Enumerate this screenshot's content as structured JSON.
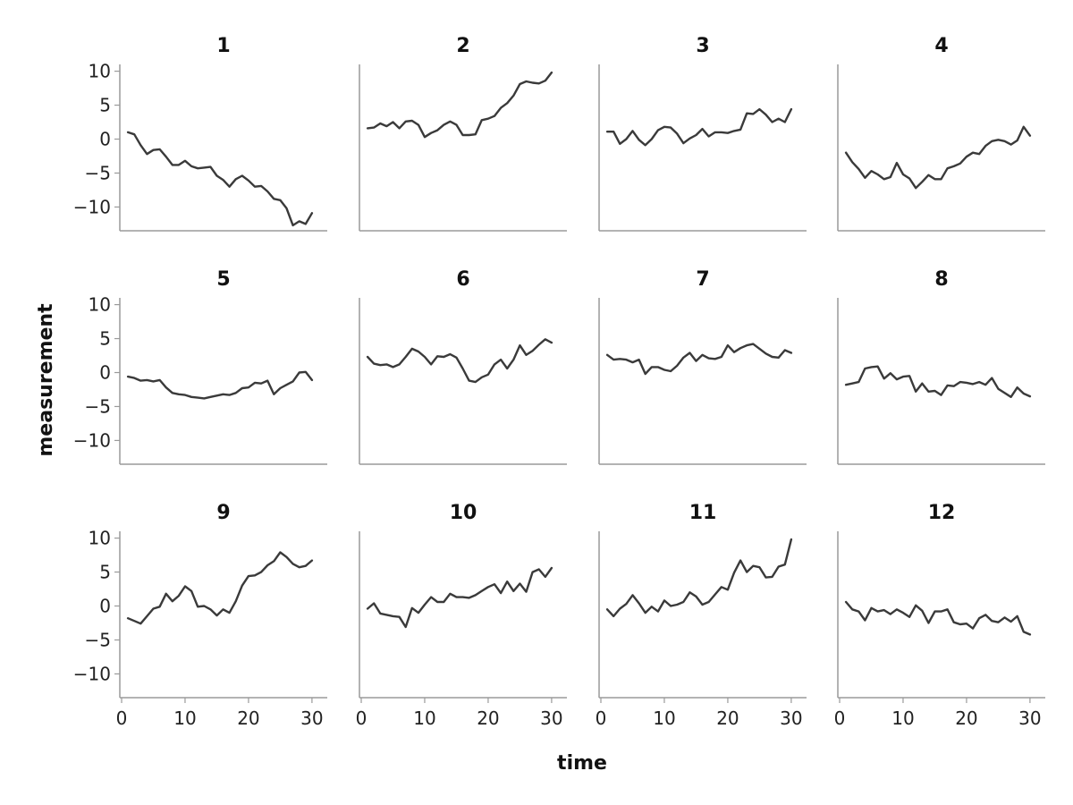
{
  "chart_data": {
    "type": "line",
    "layout": "small-multiples 3x4",
    "xlabel": "time",
    "ylabel": "measurement",
    "xlim": [
      0,
      31
    ],
    "ylim": [
      -13.5,
      11
    ],
    "xticks": [
      0,
      10,
      20,
      30
    ],
    "yticks": [
      10,
      5,
      0,
      -5,
      -10
    ],
    "x": [
      1,
      2,
      3,
      4,
      5,
      6,
      7,
      8,
      9,
      10,
      11,
      12,
      13,
      14,
      15,
      16,
      17,
      18,
      19,
      20,
      21,
      22,
      23,
      24,
      25,
      26,
      27,
      28,
      29,
      30
    ],
    "line_color": "#3a3a3a",
    "panels": [
      {
        "title": "1",
        "values": [
          1.0,
          0.7,
          -0.9,
          -2.2,
          -1.6,
          -1.5,
          -2.6,
          -3.8,
          -3.8,
          -3.2,
          -4.0,
          -4.3,
          -4.2,
          -4.1,
          -5.4,
          -6.0,
          -7.0,
          -5.9,
          -5.4,
          -6.1,
          -7.0,
          -6.9,
          -7.7,
          -8.8,
          -9.0,
          -10.2,
          -12.7,
          -12.1,
          -12.5,
          -10.9
        ]
      },
      {
        "title": "2",
        "values": [
          1.6,
          1.7,
          2.3,
          1.9,
          2.5,
          1.6,
          2.6,
          2.7,
          2.1,
          0.3,
          0.9,
          1.3,
          2.1,
          2.6,
          2.1,
          0.6,
          0.6,
          0.7,
          2.8,
          3.0,
          3.4,
          4.6,
          5.3,
          6.4,
          8.1,
          8.5,
          8.3,
          8.2,
          8.6,
          9.8
        ]
      },
      {
        "title": "3",
        "values": [
          1.1,
          1.1,
          -0.7,
          0.0,
          1.2,
          -0.1,
          -0.9,
          0.0,
          1.3,
          1.8,
          1.7,
          0.8,
          -0.6,
          0.1,
          0.6,
          1.5,
          0.4,
          1.0,
          1.0,
          0.9,
          1.2,
          1.4,
          3.8,
          3.7,
          4.4,
          3.6,
          2.5,
          3.0,
          2.5,
          4.4
        ]
      },
      {
        "title": "4",
        "values": [
          -2.0,
          -3.4,
          -4.4,
          -5.7,
          -4.7,
          -5.2,
          -5.9,
          -5.6,
          -3.5,
          -5.2,
          -5.8,
          -7.2,
          -6.3,
          -5.3,
          -5.9,
          -5.9,
          -4.3,
          -4.0,
          -3.6,
          -2.6,
          -2.0,
          -2.2,
          -1.0,
          -0.3,
          -0.1,
          -0.3,
          -0.8,
          -0.2,
          1.8,
          0.5
        ]
      },
      {
        "title": "5",
        "values": [
          -0.6,
          -0.8,
          -1.2,
          -1.1,
          -1.3,
          -1.1,
          -2.2,
          -3.0,
          -3.2,
          -3.3,
          -3.6,
          -3.7,
          -3.8,
          -3.6,
          -3.4,
          -3.2,
          -3.3,
          -3.0,
          -2.3,
          -2.2,
          -1.5,
          -1.6,
          -1.2,
          -3.2,
          -2.3,
          -1.8,
          -1.3,
          0.0,
          0.1,
          -1.1
        ]
      },
      {
        "title": "6",
        "values": [
          2.3,
          1.3,
          1.1,
          1.2,
          0.8,
          1.2,
          2.3,
          3.5,
          3.1,
          2.3,
          1.2,
          2.4,
          2.3,
          2.7,
          2.2,
          0.6,
          -1.2,
          -1.4,
          -0.7,
          -0.3,
          1.2,
          1.9,
          0.6,
          1.9,
          4.0,
          2.6,
          3.2,
          4.1,
          4.9,
          4.4
        ]
      },
      {
        "title": "7",
        "values": [
          2.6,
          1.9,
          2.0,
          1.9,
          1.5,
          1.9,
          -0.2,
          0.8,
          0.8,
          0.4,
          0.2,
          1.0,
          2.2,
          2.9,
          1.7,
          2.6,
          2.1,
          2.0,
          2.3,
          4.0,
          3.0,
          3.6,
          4.0,
          4.2,
          3.5,
          2.8,
          2.3,
          2.2,
          3.3,
          2.9
        ]
      },
      {
        "title": "8",
        "values": [
          -1.8,
          -1.6,
          -1.4,
          0.6,
          0.8,
          0.9,
          -0.9,
          -0.1,
          -1.0,
          -0.6,
          -0.5,
          -2.8,
          -1.6,
          -2.8,
          -2.7,
          -3.3,
          -1.9,
          -2.0,
          -1.4,
          -1.5,
          -1.7,
          -1.4,
          -1.8,
          -0.8,
          -2.4,
          -3.0,
          -3.6,
          -2.2,
          -3.1,
          -3.5
        ]
      },
      {
        "title": "9",
        "values": [
          -1.8,
          -2.2,
          -2.6,
          -1.5,
          -0.4,
          -0.1,
          1.8,
          0.7,
          1.5,
          2.9,
          2.2,
          -0.1,
          0.0,
          -0.5,
          -1.4,
          -0.5,
          -1.0,
          0.7,
          3.0,
          4.4,
          4.5,
          5.0,
          6.0,
          6.6,
          7.9,
          7.2,
          6.2,
          5.7,
          5.9,
          6.7
        ]
      },
      {
        "title": "10",
        "values": [
          -0.4,
          0.4,
          -1.1,
          -1.3,
          -1.5,
          -1.6,
          -3.1,
          -0.3,
          -1.0,
          0.2,
          1.3,
          0.6,
          0.6,
          1.8,
          1.3,
          1.3,
          1.2,
          1.6,
          2.2,
          2.8,
          3.2,
          1.9,
          3.6,
          2.2,
          3.3,
          2.1,
          5.0,
          5.4,
          4.3,
          5.6
        ]
      },
      {
        "title": "11",
        "values": [
          -0.5,
          -1.5,
          -0.4,
          0.3,
          1.6,
          0.4,
          -1.0,
          -0.1,
          -0.8,
          0.8,
          0.0,
          0.2,
          0.6,
          2.0,
          1.4,
          0.2,
          0.6,
          1.7,
          2.8,
          2.4,
          4.9,
          6.7,
          5.0,
          5.9,
          5.7,
          4.2,
          4.3,
          5.8,
          6.1,
          9.8
        ]
      },
      {
        "title": "12",
        "values": [
          0.6,
          -0.5,
          -0.8,
          -2.1,
          -0.3,
          -0.8,
          -0.6,
          -1.2,
          -0.5,
          -1.0,
          -1.6,
          0.1,
          -0.7,
          -2.5,
          -0.8,
          -0.8,
          -0.5,
          -2.4,
          -2.7,
          -2.6,
          -3.3,
          -1.8,
          -1.3,
          -2.2,
          -2.4,
          -1.7,
          -2.3,
          -1.5,
          -3.8,
          -4.2
        ]
      }
    ]
  }
}
